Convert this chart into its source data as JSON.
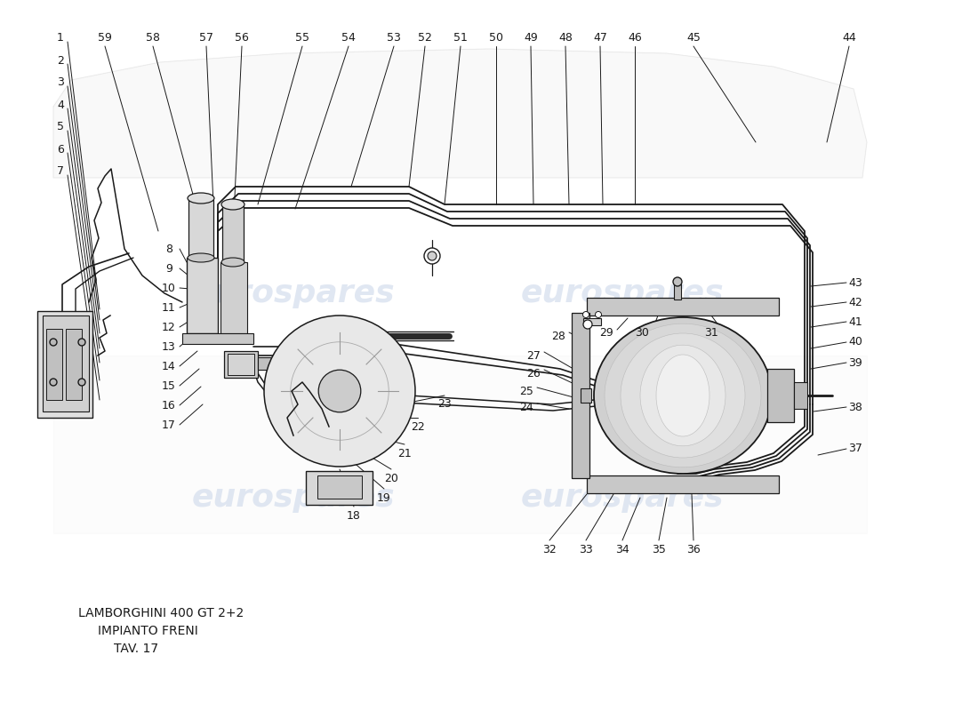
{
  "title_line1": "LAMBORGHINI 400 GT 2+2",
  "title_line2": "IMPIANTO FRENI",
  "title_line3": "TAV. 17",
  "bg_color": "#ffffff",
  "line_color": "#1a1a1a",
  "fig_width": 11.0,
  "fig_height": 8.0,
  "dpi": 100,
  "watermark1": "eurospares",
  "watermark2": "eurospares",
  "wm_color": "#c8d4e8",
  "wm_alpha": 0.55
}
